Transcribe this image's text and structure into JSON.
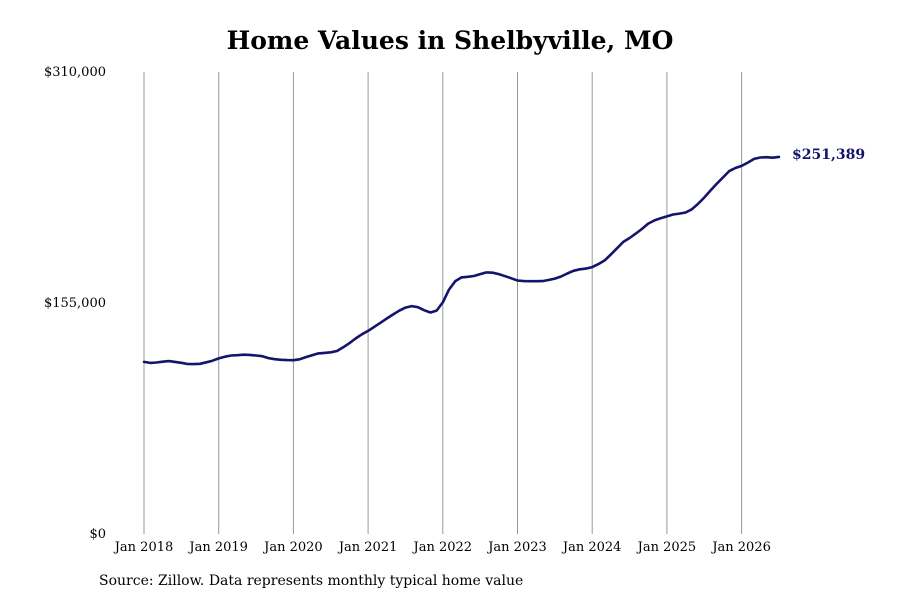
{
  "chart_data": {
    "type": "line",
    "title": "Home Values in Shelbyville, MO",
    "xlabel": "",
    "ylabel": "",
    "x_ticks": [
      "Jan 2018",
      "Jan 2019",
      "Jan 2020",
      "Jan 2021",
      "Jan 2022",
      "Jan 2023",
      "Jan 2024",
      "Jan 2025",
      "Jan 2026"
    ],
    "y_ticks": [
      "$0",
      "$155,000",
      "$310,000"
    ],
    "ylim": [
      0,
      310000
    ],
    "x_range": [
      "2018-01",
      "2026-08"
    ],
    "grid": "vertical",
    "colors": {
      "line": "#14146b",
      "grid": "#999999",
      "end_label": "#14146b"
    },
    "end_label": "$251,389",
    "series": [
      {
        "values": [
          [
            "2018-01",
            115500
          ],
          [
            "2018-02",
            114800
          ],
          [
            "2018-03",
            115100
          ],
          [
            "2018-04",
            115600
          ],
          [
            "2018-05",
            116000
          ],
          [
            "2018-06",
            115500
          ],
          [
            "2018-07",
            114900
          ],
          [
            "2018-08",
            114100
          ],
          [
            "2018-09",
            114000
          ],
          [
            "2018-10",
            114200
          ],
          [
            "2018-11",
            115200
          ],
          [
            "2018-12",
            116300
          ],
          [
            "2019-01",
            117800
          ],
          [
            "2019-02",
            119000
          ],
          [
            "2019-03",
            119800
          ],
          [
            "2019-04",
            120000
          ],
          [
            "2019-05",
            120300
          ],
          [
            "2019-06",
            120200
          ],
          [
            "2019-07",
            119800
          ],
          [
            "2019-08",
            119300
          ],
          [
            "2019-09",
            118000
          ],
          [
            "2019-10",
            117300
          ],
          [
            "2019-11",
            116900
          ],
          [
            "2019-12",
            116700
          ],
          [
            "2020-01",
            116600
          ],
          [
            "2020-02",
            117200
          ],
          [
            "2020-03",
            118700
          ],
          [
            "2020-04",
            120000
          ],
          [
            "2020-05",
            121200
          ],
          [
            "2020-06",
            121500
          ],
          [
            "2020-07",
            121900
          ],
          [
            "2020-08",
            122800
          ],
          [
            "2020-09",
            125300
          ],
          [
            "2020-10",
            128000
          ],
          [
            "2020-11",
            131200
          ],
          [
            "2020-12",
            134000
          ],
          [
            "2021-01",
            136300
          ],
          [
            "2021-02",
            139000
          ],
          [
            "2021-03",
            141800
          ],
          [
            "2021-04",
            144600
          ],
          [
            "2021-05",
            147300
          ],
          [
            "2021-06",
            149800
          ],
          [
            "2021-07",
            151900
          ],
          [
            "2021-08",
            152900
          ],
          [
            "2021-09",
            152200
          ],
          [
            "2021-10",
            150200
          ],
          [
            "2021-11",
            148600
          ],
          [
            "2021-12",
            149900
          ],
          [
            "2022-01",
            155400
          ],
          [
            "2022-02",
            164000
          ],
          [
            "2022-03",
            169700
          ],
          [
            "2022-04",
            172200
          ],
          [
            "2022-05",
            172600
          ],
          [
            "2022-06",
            173100
          ],
          [
            "2022-07",
            174400
          ],
          [
            "2022-08",
            175500
          ],
          [
            "2022-09",
            175300
          ],
          [
            "2022-10",
            174400
          ],
          [
            "2022-11",
            173000
          ],
          [
            "2022-12",
            171600
          ],
          [
            "2023-01",
            170100
          ],
          [
            "2023-02",
            169700
          ],
          [
            "2023-03",
            169600
          ],
          [
            "2023-04",
            169600
          ],
          [
            "2023-05",
            169700
          ],
          [
            "2023-06",
            170400
          ],
          [
            "2023-07",
            171400
          ],
          [
            "2023-08",
            172800
          ],
          [
            "2023-09",
            174800
          ],
          [
            "2023-10",
            176600
          ],
          [
            "2023-11",
            177600
          ],
          [
            "2023-12",
            178100
          ],
          [
            "2024-01",
            179100
          ],
          [
            "2024-02",
            181100
          ],
          [
            "2024-03",
            183600
          ],
          [
            "2024-04",
            187600
          ],
          [
            "2024-05",
            191800
          ],
          [
            "2024-06",
            196000
          ],
          [
            "2024-07",
            198600
          ],
          [
            "2024-08",
            201600
          ],
          [
            "2024-09",
            204700
          ],
          [
            "2024-10",
            208300
          ],
          [
            "2024-11",
            210400
          ],
          [
            "2024-12",
            211900
          ],
          [
            "2025-01",
            213100
          ],
          [
            "2025-02",
            214400
          ],
          [
            "2025-03",
            215000
          ],
          [
            "2025-04",
            215700
          ],
          [
            "2025-05",
            217900
          ],
          [
            "2025-06",
            221500
          ],
          [
            "2025-07",
            225800
          ],
          [
            "2025-08",
            230500
          ],
          [
            "2025-09",
            235000
          ],
          [
            "2025-10",
            239200
          ],
          [
            "2025-11",
            243500
          ],
          [
            "2025-12",
            245600
          ],
          [
            "2026-01",
            247000
          ],
          [
            "2026-02",
            249200
          ],
          [
            "2026-03",
            251700
          ],
          [
            "2026-04",
            252600
          ],
          [
            "2026-05",
            252800
          ],
          [
            "2026-06",
            252500
          ],
          [
            "2026-07",
            253000
          ]
        ]
      }
    ]
  },
  "footer": {
    "source": "Source: Zillow. Data represents monthly typical home value"
  }
}
